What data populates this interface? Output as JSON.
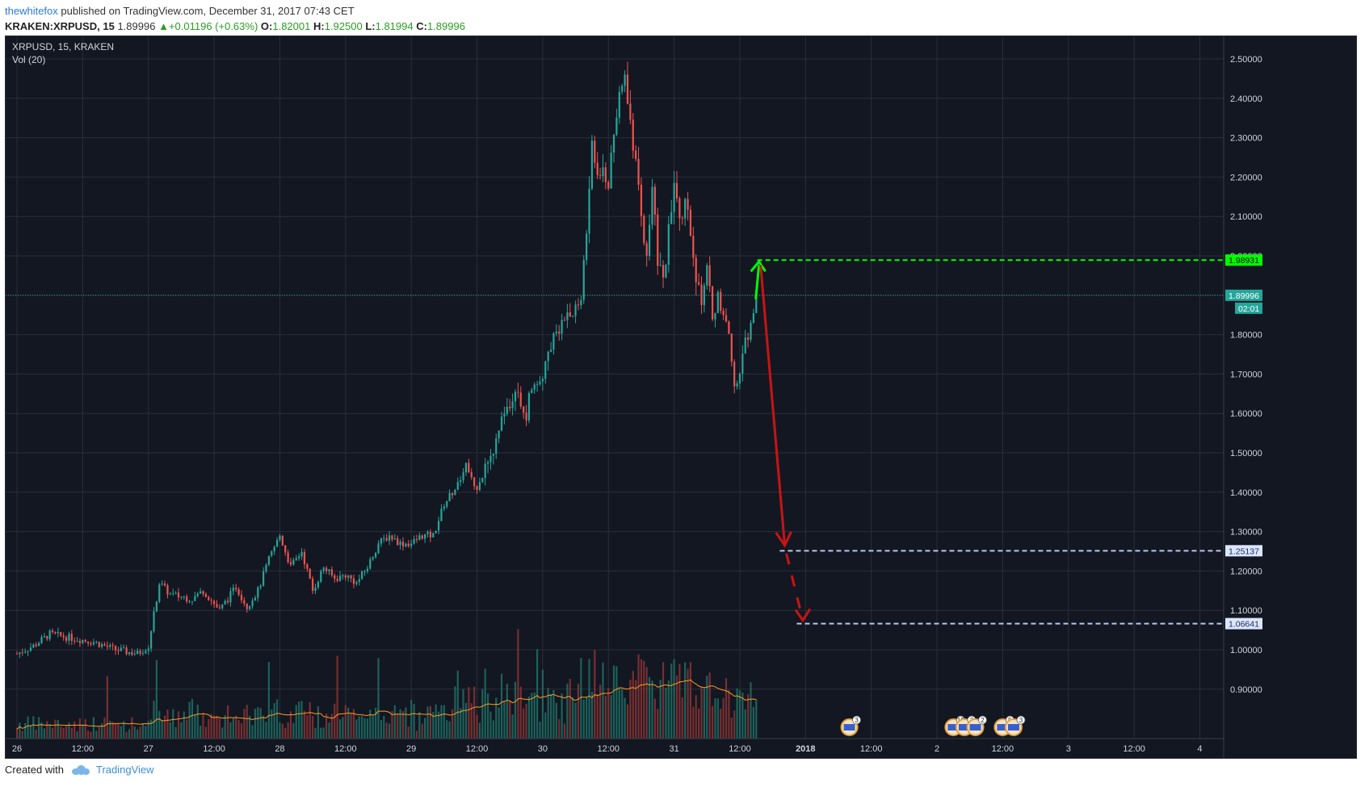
{
  "header": {
    "author": "thewhitefox",
    "published_text": " published on TradingView.com, December 31, 2017 07:43 CET",
    "symbol": "KRAKEN:XRPUSD, 15",
    "last": "1.89996",
    "change": "+0.01196 (+0.63%)",
    "o_label": "O:",
    "o_value": "1.82001",
    "h_label": "H:",
    "h_value": "1.92500",
    "l_label": "L:",
    "l_value": "1.81994",
    "c_label": "C:",
    "c_value": "1.89996"
  },
  "legend": {
    "title": "XRPUSD, 15, KRAKEN",
    "volume": "Vol (20)"
  },
  "footer": {
    "created_with": "Created with",
    "brand": "TradingView"
  },
  "colors": {
    "background": "#131722",
    "grid": "#2a2e39",
    "up": "#26a69a",
    "down": "#ef5350",
    "vol_ma": "#ff9a1f",
    "target_green": "#00ff00",
    "arrow_red": "#c81414",
    "dashed_blue": "#b4c7f5",
    "last_price_line": "#26a69a"
  },
  "chart_data": {
    "type": "candlestick",
    "title": "XRPUSD, 15, KRAKEN",
    "ylim": [
      0.9,
      2.55
    ],
    "y_ticks": [
      "2.50000",
      "2.40000",
      "2.30000",
      "2.20000",
      "2.10000",
      "2.00000",
      "1.90000",
      "1.80000",
      "1.70000",
      "1.60000",
      "1.50000",
      "1.40000",
      "1.30000",
      "1.20000",
      "1.10000",
      "1.00000",
      "0.90000"
    ],
    "y_tick_values": [
      2.5,
      2.4,
      2.3,
      2.2,
      2.1,
      2.0,
      1.9,
      1.8,
      1.7,
      1.6,
      1.5,
      1.4,
      1.3,
      1.2,
      1.1,
      1.0,
      0.9
    ],
    "x_ticks": [
      "26",
      "12:00",
      "27",
      "12:00",
      "28",
      "12:00",
      "29",
      "12:00",
      "30",
      "12:00",
      "31",
      "12:00",
      "2018",
      "12:00",
      "2",
      "12:00",
      "3",
      "12:00",
      "4"
    ],
    "x_tick_hours": [
      0,
      12,
      24,
      36,
      48,
      60,
      72,
      84,
      96,
      108,
      120,
      132,
      144,
      156,
      168,
      180,
      192,
      204,
      216
    ],
    "price_path": [
      [
        0,
        0.99
      ],
      [
        3,
        1.01
      ],
      [
        6,
        1.04
      ],
      [
        10,
        1.03
      ],
      [
        14,
        1.02
      ],
      [
        18,
        1.0
      ],
      [
        22,
        0.99
      ],
      [
        24,
        1.01
      ],
      [
        25,
        1.09
      ],
      [
        26,
        1.17
      ],
      [
        28,
        1.14
      ],
      [
        32,
        1.13
      ],
      [
        34,
        1.15
      ],
      [
        37,
        1.1
      ],
      [
        40,
        1.16
      ],
      [
        42,
        1.11
      ],
      [
        44,
        1.15
      ],
      [
        46,
        1.23
      ],
      [
        48,
        1.29
      ],
      [
        50,
        1.21
      ],
      [
        52,
        1.25
      ],
      [
        54,
        1.15
      ],
      [
        56,
        1.21
      ],
      [
        58,
        1.18
      ],
      [
        60,
        1.19
      ],
      [
        62,
        1.17
      ],
      [
        64,
        1.21
      ],
      [
        66,
        1.27
      ],
      [
        68,
        1.29
      ],
      [
        70,
        1.27
      ],
      [
        72,
        1.27
      ],
      [
        74,
        1.29
      ],
      [
        76,
        1.29
      ],
      [
        78,
        1.37
      ],
      [
        80,
        1.41
      ],
      [
        82,
        1.47
      ],
      [
        84,
        1.41
      ],
      [
        86,
        1.47
      ],
      [
        88,
        1.55
      ],
      [
        89,
        1.6
      ],
      [
        90,
        1.63
      ],
      [
        91,
        1.67
      ],
      [
        92,
        1.63
      ],
      [
        93,
        1.59
      ],
      [
        94,
        1.68
      ],
      [
        96,
        1.7
      ],
      [
        98,
        1.8
      ],
      [
        100,
        1.84
      ],
      [
        102,
        1.86
      ],
      [
        103,
        1.89
      ],
      [
        104,
        2.05
      ],
      [
        105,
        2.3
      ],
      [
        106,
        2.2
      ],
      [
        107,
        2.22
      ],
      [
        108,
        2.18
      ],
      [
        109,
        2.29
      ],
      [
        110,
        2.4
      ],
      [
        111,
        2.46
      ],
      [
        112,
        2.33
      ],
      [
        113,
        2.22
      ],
      [
        114,
        2.1
      ],
      [
        115,
        2.02
      ],
      [
        116,
        2.16
      ],
      [
        117,
        2.0
      ],
      [
        118,
        1.94
      ],
      [
        119,
        2.06
      ],
      [
        120,
        2.17
      ],
      [
        121,
        2.08
      ],
      [
        122,
        2.12
      ],
      [
        123,
        2.06
      ],
      [
        124,
        1.94
      ],
      [
        125,
        1.87
      ],
      [
        126,
        1.97
      ],
      [
        127,
        1.84
      ],
      [
        128,
        1.9
      ],
      [
        129,
        1.83
      ],
      [
        130,
        1.81
      ],
      [
        131,
        1.68
      ],
      [
        132,
        1.7
      ],
      [
        133,
        1.78
      ],
      [
        134,
        1.83
      ],
      [
        135,
        1.9
      ]
    ],
    "volume_ma_label": "Vol (20)",
    "last_price": 1.89996,
    "countdown": "02:01",
    "levels": [
      {
        "label": "1.98931",
        "value": 1.98931,
        "color": "green"
      },
      {
        "label": "1.25137",
        "value": 1.25137,
        "color": "blue"
      },
      {
        "label": "1.06641",
        "value": 1.06641,
        "color": "blue"
      }
    ],
    "events": [
      {
        "hour": 152,
        "count": "3"
      },
      {
        "hour": 171,
        "count": "15"
      },
      {
        "hour": 173,
        "count": "2"
      },
      {
        "hour": 175,
        "count": "2"
      },
      {
        "hour": 180,
        "count": "5"
      },
      {
        "hour": 182,
        "count": "3"
      }
    ]
  }
}
